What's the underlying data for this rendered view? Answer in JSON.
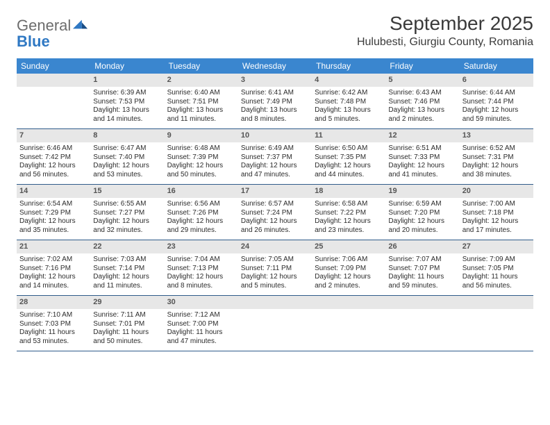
{
  "logo": {
    "text1": "General",
    "text2": "Blue"
  },
  "title": "September 2025",
  "location": "Hulubesti, Giurgiu County, Romania",
  "colors": {
    "header_bg": "#3a86cf",
    "header_text": "#ffffff",
    "daynum_bg": "#e7e7e7",
    "daynum_text": "#555555",
    "body_text": "#2b2b2b",
    "rule": "#2f5b8a",
    "logo_gray": "#6c6c6c",
    "logo_blue": "#2f78c3"
  },
  "weekdays": [
    "Sunday",
    "Monday",
    "Tuesday",
    "Wednesday",
    "Thursday",
    "Friday",
    "Saturday"
  ],
  "weeks": [
    [
      {
        "blank": true
      },
      {
        "n": "1",
        "sr": "6:39 AM",
        "ss": "7:53 PM",
        "dl": "13 hours and 14 minutes."
      },
      {
        "n": "2",
        "sr": "6:40 AM",
        "ss": "7:51 PM",
        "dl": "13 hours and 11 minutes."
      },
      {
        "n": "3",
        "sr": "6:41 AM",
        "ss": "7:49 PM",
        "dl": "13 hours and 8 minutes."
      },
      {
        "n": "4",
        "sr": "6:42 AM",
        "ss": "7:48 PM",
        "dl": "13 hours and 5 minutes."
      },
      {
        "n": "5",
        "sr": "6:43 AM",
        "ss": "7:46 PM",
        "dl": "13 hours and 2 minutes."
      },
      {
        "n": "6",
        "sr": "6:44 AM",
        "ss": "7:44 PM",
        "dl": "12 hours and 59 minutes."
      }
    ],
    [
      {
        "n": "7",
        "sr": "6:46 AM",
        "ss": "7:42 PM",
        "dl": "12 hours and 56 minutes."
      },
      {
        "n": "8",
        "sr": "6:47 AM",
        "ss": "7:40 PM",
        "dl": "12 hours and 53 minutes."
      },
      {
        "n": "9",
        "sr": "6:48 AM",
        "ss": "7:39 PM",
        "dl": "12 hours and 50 minutes."
      },
      {
        "n": "10",
        "sr": "6:49 AM",
        "ss": "7:37 PM",
        "dl": "12 hours and 47 minutes."
      },
      {
        "n": "11",
        "sr": "6:50 AM",
        "ss": "7:35 PM",
        "dl": "12 hours and 44 minutes."
      },
      {
        "n": "12",
        "sr": "6:51 AM",
        "ss": "7:33 PM",
        "dl": "12 hours and 41 minutes."
      },
      {
        "n": "13",
        "sr": "6:52 AM",
        "ss": "7:31 PM",
        "dl": "12 hours and 38 minutes."
      }
    ],
    [
      {
        "n": "14",
        "sr": "6:54 AM",
        "ss": "7:29 PM",
        "dl": "12 hours and 35 minutes."
      },
      {
        "n": "15",
        "sr": "6:55 AM",
        "ss": "7:27 PM",
        "dl": "12 hours and 32 minutes."
      },
      {
        "n": "16",
        "sr": "6:56 AM",
        "ss": "7:26 PM",
        "dl": "12 hours and 29 minutes."
      },
      {
        "n": "17",
        "sr": "6:57 AM",
        "ss": "7:24 PM",
        "dl": "12 hours and 26 minutes."
      },
      {
        "n": "18",
        "sr": "6:58 AM",
        "ss": "7:22 PM",
        "dl": "12 hours and 23 minutes."
      },
      {
        "n": "19",
        "sr": "6:59 AM",
        "ss": "7:20 PM",
        "dl": "12 hours and 20 minutes."
      },
      {
        "n": "20",
        "sr": "7:00 AM",
        "ss": "7:18 PM",
        "dl": "12 hours and 17 minutes."
      }
    ],
    [
      {
        "n": "21",
        "sr": "7:02 AM",
        "ss": "7:16 PM",
        "dl": "12 hours and 14 minutes."
      },
      {
        "n": "22",
        "sr": "7:03 AM",
        "ss": "7:14 PM",
        "dl": "12 hours and 11 minutes."
      },
      {
        "n": "23",
        "sr": "7:04 AM",
        "ss": "7:13 PM",
        "dl": "12 hours and 8 minutes."
      },
      {
        "n": "24",
        "sr": "7:05 AM",
        "ss": "7:11 PM",
        "dl": "12 hours and 5 minutes."
      },
      {
        "n": "25",
        "sr": "7:06 AM",
        "ss": "7:09 PM",
        "dl": "12 hours and 2 minutes."
      },
      {
        "n": "26",
        "sr": "7:07 AM",
        "ss": "7:07 PM",
        "dl": "11 hours and 59 minutes."
      },
      {
        "n": "27",
        "sr": "7:09 AM",
        "ss": "7:05 PM",
        "dl": "11 hours and 56 minutes."
      }
    ],
    [
      {
        "n": "28",
        "sr": "7:10 AM",
        "ss": "7:03 PM",
        "dl": "11 hours and 53 minutes."
      },
      {
        "n": "29",
        "sr": "7:11 AM",
        "ss": "7:01 PM",
        "dl": "11 hours and 50 minutes."
      },
      {
        "n": "30",
        "sr": "7:12 AM",
        "ss": "7:00 PM",
        "dl": "11 hours and 47 minutes."
      },
      {
        "blank": true
      },
      {
        "blank": true
      },
      {
        "blank": true
      },
      {
        "blank": true
      }
    ]
  ],
  "labels": {
    "sunrise": "Sunrise:",
    "sunset": "Sunset:",
    "daylight": "Daylight:"
  }
}
